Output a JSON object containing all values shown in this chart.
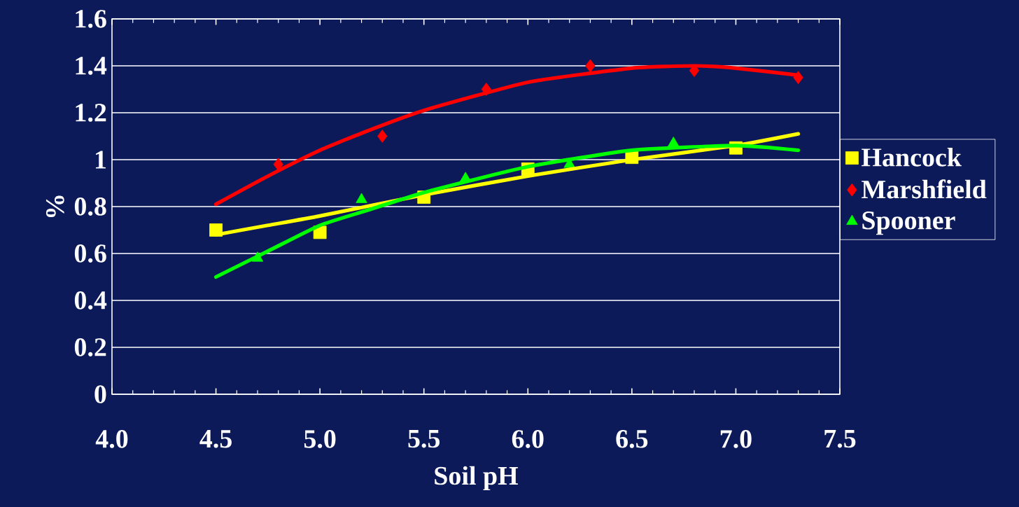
{
  "chart_data": {
    "type": "scatter",
    "xlabel": "Soil pH",
    "ylabel": "%",
    "xlim": [
      4.0,
      7.5
    ],
    "ylim": [
      0,
      1.6
    ],
    "xticks": [
      {
        "value": 4.0,
        "label": "4.0"
      },
      {
        "value": 4.5,
        "label": "4.5"
      },
      {
        "value": 5.0,
        "label": "5.0"
      },
      {
        "value": 5.5,
        "label": "5.5"
      },
      {
        "value": 6.0,
        "label": "6.0"
      },
      {
        "value": 6.5,
        "label": "6.5"
      },
      {
        "value": 7.0,
        "label": "7.0"
      },
      {
        "value": 7.5,
        "label": "7.5"
      }
    ],
    "yticks": [
      0,
      0.2,
      0.4,
      0.6,
      0.8,
      1,
      1.2,
      1.4,
      1.6
    ],
    "grid": "y",
    "legend": "right",
    "series": [
      {
        "name": "Hancock",
        "marker": "square",
        "color": "#ffff00",
        "x": [
          4.5,
          5.0,
          5.5,
          6.0,
          6.5,
          7.0
        ],
        "values": [
          0.7,
          0.69,
          0.84,
          0.96,
          1.01,
          1.05
        ]
      },
      {
        "name": "Marshfield",
        "marker": "diamond",
        "color": "#ff0000",
        "x": [
          4.8,
          5.3,
          5.8,
          6.3,
          6.8,
          7.3
        ],
        "values": [
          0.98,
          1.1,
          1.3,
          1.4,
          1.38,
          1.35
        ]
      },
      {
        "name": "Spooner",
        "marker": "triangle",
        "color": "#00ff00",
        "x": [
          4.7,
          5.2,
          5.7,
          6.2,
          6.7
        ],
        "values": [
          0.58,
          0.83,
          0.92,
          0.98,
          1.07
        ]
      },
      {
        "type": "line",
        "color": "#ffff00",
        "x": [
          4.5,
          4.75,
          5.0,
          5.5,
          6.0,
          6.5,
          7.0,
          7.3
        ],
        "values": [
          0.68,
          0.72,
          0.76,
          0.85,
          0.93,
          1.0,
          1.06,
          1.11
        ]
      },
      {
        "type": "line",
        "color": "#ff0000",
        "x": [
          4.5,
          4.75,
          5.0,
          5.25,
          5.5,
          6.0,
          6.5,
          6.8,
          7.0,
          7.3
        ],
        "values": [
          0.81,
          0.93,
          1.04,
          1.13,
          1.21,
          1.33,
          1.39,
          1.4,
          1.39,
          1.36
        ]
      },
      {
        "type": "line",
        "color": "#00ff00",
        "x": [
          4.5,
          4.75,
          5.0,
          5.25,
          5.5,
          6.0,
          6.5,
          7.0,
          7.3
        ],
        "values": [
          0.5,
          0.61,
          0.72,
          0.79,
          0.86,
          0.97,
          1.04,
          1.06,
          1.04
        ]
      }
    ]
  }
}
